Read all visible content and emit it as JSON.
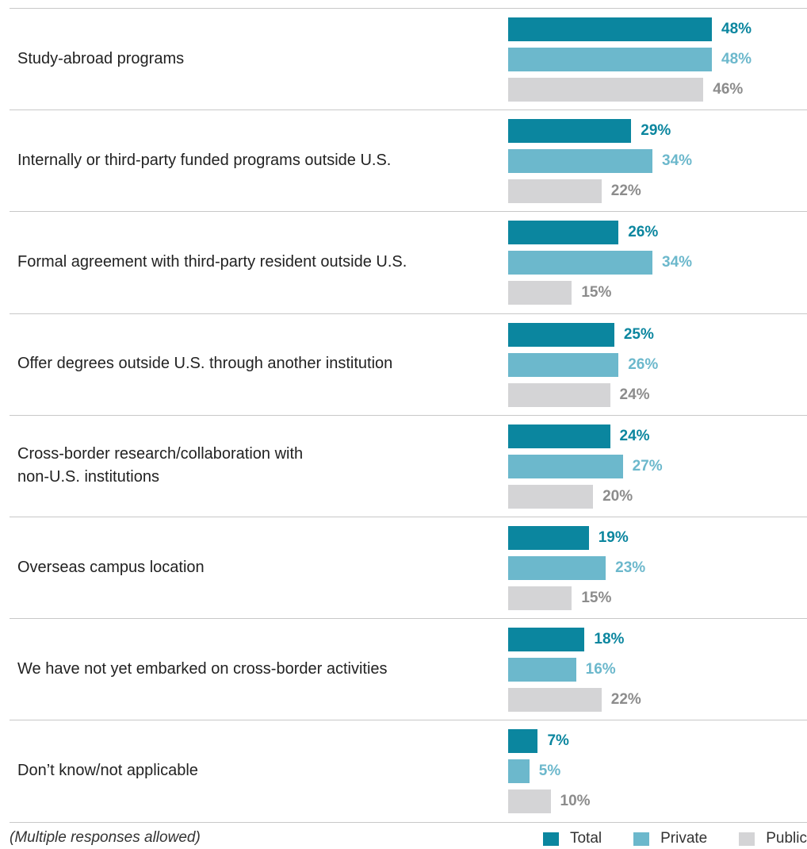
{
  "chart_data": {
    "type": "bar",
    "orientation": "horizontal",
    "categories": [
      "Study-abroad programs",
      "Internally or third-party funded programs outside U.S.",
      "Formal agreement with third-party resident outside U.S.",
      "Offer degrees outside U.S. through another institution",
      "Cross-border research/collaboration with\nnon-U.S. institutions",
      "Overseas campus location",
      "We have not yet embarked on cross-border activities",
      "Don’t know/not applicable"
    ],
    "series": [
      {
        "name": "Total",
        "color": "#0b869f",
        "values": [
          48,
          29,
          26,
          25,
          24,
          19,
          18,
          7
        ]
      },
      {
        "name": "Private",
        "color": "#6cb8cc",
        "values": [
          48,
          34,
          34,
          26,
          27,
          23,
          16,
          5
        ]
      },
      {
        "name": "Public",
        "color": "#d4d4d6",
        "label_color": "#8c8c8c",
        "values": [
          46,
          22,
          15,
          24,
          20,
          15,
          22,
          10
        ]
      }
    ],
    "value_suffix": "%",
    "xlim": [
      0,
      50
    ],
    "grid": false,
    "legend_position": "bottom-right"
  },
  "footnote": "(Multiple responses allowed)"
}
